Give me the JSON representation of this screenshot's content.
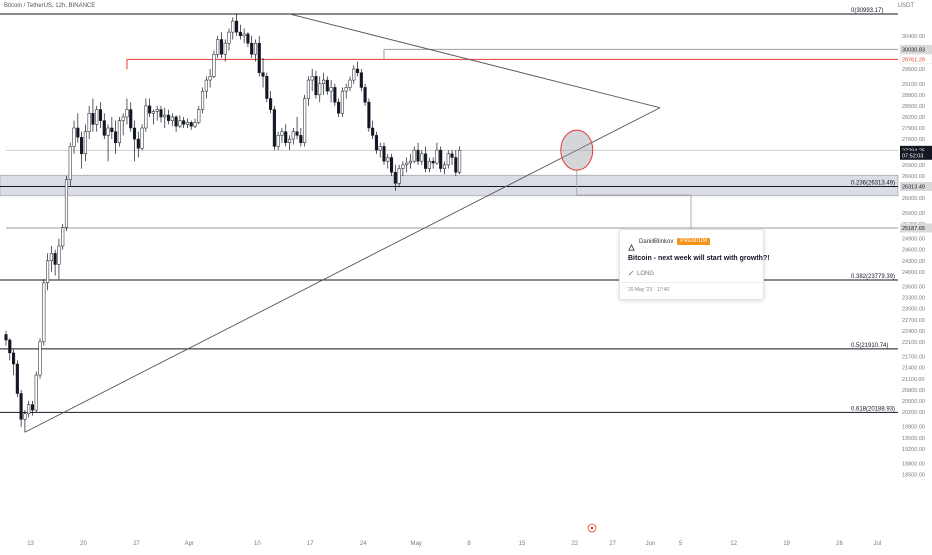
{
  "header": {
    "title": "Bitcoin / TetherUS, 12h, BINANCE",
    "currency": "USDT"
  },
  "price_scale": {
    "ticks": [
      "30400.00",
      "30100.00",
      "29800.00",
      "29500.00",
      "29100.00",
      "28800.00",
      "28500.00",
      "28200.00",
      "27900.00",
      "27600.00",
      "26900.00",
      "26600.00",
      "26300.00",
      "26000.00",
      "25600.00",
      "25300.00",
      "24900.00",
      "24600.00",
      "24300.00",
      "24000.00",
      "23600.00",
      "23300.00",
      "23000.00",
      "22700.00",
      "22400.00",
      "22100.00",
      "21700.00",
      "21400.00",
      "21100.00",
      "20800.00",
      "20500.00",
      "20200.00",
      "19800.00",
      "19500.00",
      "19200.00",
      "18800.00",
      "18500.00"
    ],
    "tags": [
      {
        "label": "30030.83",
        "value": 30030.83,
        "bg": "#d9d9d9",
        "color": "#131722"
      },
      {
        "label": "29761.29",
        "value": 29761.29,
        "bg": "#ffffff",
        "color": "#e53935"
      },
      {
        "label": "27294.25",
        "value": 27294.25,
        "bg": "#131722",
        "color": "#ffffff"
      },
      {
        "label": "07:52:03",
        "value": 27160,
        "bg": "#131722",
        "color": "#ffffff"
      },
      {
        "label": "26313.49",
        "value": 26313.49,
        "bg": "#d9d9d9",
        "color": "#131722"
      },
      {
        "label": "25187.65",
        "value": 25187.65,
        "bg": "#d9d9d9",
        "color": "#131722"
      }
    ]
  },
  "time_scale": {
    "ticks": [
      {
        "label": "13",
        "bar": 6.5
      },
      {
        "label": "20",
        "bar": 20.5
      },
      {
        "label": "27",
        "bar": 34.5
      },
      {
        "label": "Apr",
        "bar": 48.5
      },
      {
        "label": "10",
        "bar": 66.5
      },
      {
        "label": "17",
        "bar": 80.5
      },
      {
        "label": "24",
        "bar": 94.5
      },
      {
        "label": "May",
        "bar": 108.5
      },
      {
        "label": "8",
        "bar": 122.5
      },
      {
        "label": "15",
        "bar": 136.5
      },
      {
        "label": "22",
        "bar": 150.5
      },
      {
        "label": "27",
        "bar": 160.5
      },
      {
        "label": "Jun",
        "bar": 170.5
      },
      {
        "label": "5",
        "bar": 178.5
      },
      {
        "label": "12",
        "bar": 192.5
      },
      {
        "label": "19",
        "bar": 206.5
      },
      {
        "label": "26",
        "bar": 220.5
      },
      {
        "label": "Jul",
        "bar": 230.5
      }
    ]
  },
  "fib_levels": [
    {
      "label": "0(30993.17)",
      "value": 30993.17
    },
    {
      "label": "0.236(26313.49)",
      "value": 26313.49
    },
    {
      "label": "0.382(23779.39)",
      "value": 23779.39
    },
    {
      "label": "0.5(21910.74)",
      "value": 21910.74
    },
    {
      "label": "0.618(20188.93)",
      "value": 20188.93
    }
  ],
  "horizontal_lines": [
    {
      "value": 30030.83,
      "color": "#9e9e9e",
      "start_bar": 100
    },
    {
      "value": 29761.29,
      "color": "#e53935",
      "start_bar": 32
    },
    {
      "value": 27294.25,
      "color": "#cccccc",
      "start_bar": 0
    },
    {
      "value": 25187.65,
      "color": "#9e9e9e",
      "start_bar": 0
    }
  ],
  "support_zone": {
    "top": 26620,
    "bottom": 26060
  },
  "triangle": {
    "upper": {
      "start_bar": 75,
      "start_value": 30993.17,
      "end_bar": 173,
      "end_value": 28450
    },
    "lower": {
      "start_bar": 5,
      "start_value": 19650,
      "end_bar": 173,
      "end_value": 28450
    }
  },
  "highlight_circle": {
    "bar": 151,
    "value": 27300
  },
  "chart_data": {
    "type": "candlestick",
    "symbol": "BTCUSDT",
    "interval": "12h",
    "y_range": [
      18400,
      31100
    ],
    "ohlc": [
      [
        22300,
        22400,
        22000,
        22150
      ],
      [
        22150,
        22200,
        21600,
        21800
      ],
      [
        21800,
        21900,
        21200,
        21500
      ],
      [
        21500,
        21600,
        20600,
        20700
      ],
      [
        20700,
        20800,
        19800,
        20000
      ],
      [
        20000,
        20250,
        19650,
        20150
      ],
      [
        20150,
        20500,
        20050,
        20400
      ],
      [
        20400,
        20500,
        20100,
        20250
      ],
      [
        20250,
        21300,
        20200,
        21200
      ],
      [
        21200,
        22200,
        21100,
        22100
      ],
      [
        22100,
        23800,
        22000,
        23700
      ],
      [
        23700,
        24500,
        23500,
        24300
      ],
      [
        24300,
        24700,
        24000,
        24500
      ],
      [
        24500,
        24600,
        23900,
        24200
      ],
      [
        24200,
        24900,
        23800,
        24700
      ],
      [
        24700,
        25300,
        24600,
        25200
      ],
      [
        25200,
        26600,
        25100,
        26500
      ],
      [
        26500,
        27500,
        26300,
        27400
      ],
      [
        27400,
        28100,
        27200,
        27900
      ],
      [
        27900,
        28300,
        27500,
        27650
      ],
      [
        27650,
        27800,
        26800,
        27200
      ],
      [
        27200,
        28000,
        27000,
        27800
      ],
      [
        27800,
        28500,
        27600,
        28300
      ],
      [
        28300,
        28700,
        27800,
        28000
      ],
      [
        28000,
        28500,
        27800,
        28400
      ],
      [
        28400,
        28600,
        27900,
        28100
      ],
      [
        28100,
        28300,
        27600,
        27700
      ],
      [
        27700,
        28000,
        27000,
        27900
      ],
      [
        27900,
        28200,
        27600,
        27800
      ],
      [
        27800,
        28100,
        27200,
        27500
      ],
      [
        27500,
        28200,
        27400,
        28100
      ],
      [
        28100,
        28300,
        27700,
        28200
      ],
      [
        28200,
        28700,
        28000,
        28400
      ],
      [
        28400,
        28600,
        27800,
        27900
      ],
      [
        27900,
        28100,
        27000,
        27600
      ],
      [
        27600,
        27800,
        27100,
        27350
      ],
      [
        27350,
        28000,
        27300,
        27900
      ],
      [
        27900,
        28700,
        27800,
        28500
      ],
      [
        28500,
        28700,
        28200,
        28300
      ],
      [
        28300,
        28400,
        28000,
        28350
      ],
      [
        28350,
        28500,
        28100,
        28400
      ],
      [
        28400,
        28500,
        28050,
        28200
      ],
      [
        28200,
        28450,
        27900,
        28250
      ],
      [
        28250,
        28400,
        28000,
        28100
      ],
      [
        28100,
        28300,
        27950,
        28200
      ],
      [
        28200,
        28250,
        27800,
        27950
      ],
      [
        27950,
        28250,
        27900,
        28100
      ],
      [
        28100,
        28200,
        27900,
        28000
      ],
      [
        28000,
        28150,
        27900,
        28050
      ],
      [
        28050,
        28100,
        27850,
        27950
      ],
      [
        27950,
        28150,
        27900,
        28050
      ],
      [
        28050,
        28500,
        28000,
        28400
      ],
      [
        28400,
        29000,
        28300,
        28900
      ],
      [
        28900,
        29300,
        28700,
        29200
      ],
      [
        29200,
        29500,
        29000,
        29300
      ],
      [
        29300,
        30000,
        29250,
        29900
      ],
      [
        29900,
        30400,
        29800,
        30300
      ],
      [
        30300,
        30500,
        29800,
        29900
      ],
      [
        29900,
        30300,
        29700,
        30200
      ],
      [
        30200,
        30600,
        30000,
        30500
      ],
      [
        30500,
        30900,
        30300,
        30800
      ],
      [
        30800,
        31000,
        30400,
        30500
      ],
      [
        30500,
        30700,
        30300,
        30400
      ],
      [
        30400,
        30600,
        30200,
        30450
      ],
      [
        30450,
        30500,
        30100,
        30200
      ],
      [
        30200,
        30400,
        29800,
        29900
      ],
      [
        29900,
        30300,
        29700,
        30200
      ],
      [
        30200,
        30400,
        29300,
        29400
      ],
      [
        29400,
        29800,
        29000,
        29300
      ],
      [
        29300,
        29400,
        28600,
        28700
      ],
      [
        28700,
        28900,
        28300,
        28400
      ],
      [
        28400,
        28500,
        27300,
        27400
      ],
      [
        27400,
        27800,
        27300,
        27700
      ],
      [
        27700,
        27900,
        27500,
        27800
      ],
      [
        27800,
        28000,
        27400,
        27500
      ],
      [
        27500,
        27700,
        27300,
        27600
      ],
      [
        27600,
        27900,
        27450,
        27800
      ],
      [
        27800,
        28200,
        27600,
        27700
      ],
      [
        27700,
        27900,
        27400,
        27500
      ],
      [
        27500,
        28800,
        27400,
        28700
      ],
      [
        28700,
        29300,
        28500,
        29200
      ],
      [
        29200,
        29500,
        28900,
        29300
      ],
      [
        29300,
        29450,
        28700,
        28800
      ],
      [
        28800,
        29300,
        28600,
        29100
      ],
      [
        29100,
        29400,
        28800,
        29200
      ],
      [
        29200,
        29300,
        28800,
        28900
      ],
      [
        28900,
        29200,
        28600,
        29000
      ],
      [
        29000,
        29100,
        28500,
        28600
      ],
      [
        28600,
        28700,
        28200,
        28300
      ],
      [
        28300,
        29000,
        28200,
        28900
      ],
      [
        28900,
        29100,
        28700,
        29000
      ],
      [
        29000,
        29300,
        28900,
        29200
      ],
      [
        29200,
        29600,
        29100,
        29500
      ],
      [
        29500,
        29700,
        29300,
        29400
      ],
      [
        29400,
        29500,
        28900,
        29000
      ],
      [
        29000,
        29100,
        28500,
        28600
      ],
      [
        28600,
        28700,
        27800,
        27900
      ],
      [
        27900,
        28100,
        27600,
        27700
      ],
      [
        27700,
        27800,
        27200,
        27300
      ],
      [
        27300,
        27500,
        27100,
        27400
      ],
      [
        27400,
        27500,
        26900,
        27000
      ],
      [
        27000,
        27200,
        26800,
        27100
      ],
      [
        27100,
        27200,
        26600,
        26700
      ],
      [
        26700,
        26900,
        26200,
        26400
      ],
      [
        26400,
        26900,
        26300,
        26800
      ],
      [
        26800,
        27000,
        26600,
        26900
      ],
      [
        26900,
        27100,
        26700,
        26950
      ],
      [
        26950,
        27200,
        26800,
        27000
      ],
      [
        27000,
        27400,
        26950,
        27300
      ],
      [
        27300,
        27500,
        26900,
        27000
      ],
      [
        27000,
        27300,
        26900,
        27200
      ],
      [
        27200,
        27400,
        26700,
        26800
      ],
      [
        26800,
        27100,
        26700,
        27000
      ],
      [
        27000,
        27100,
        26800,
        26950
      ],
      [
        26950,
        27500,
        26900,
        27300
      ],
      [
        27300,
        27400,
        26700,
        26800
      ],
      [
        26800,
        27000,
        26650,
        26900
      ],
      [
        26900,
        27300,
        26800,
        27200
      ],
      [
        27200,
        27300,
        26900,
        27100
      ],
      [
        27100,
        27300,
        26600,
        26700
      ],
      [
        26700,
        27400,
        26650,
        27294.25
      ]
    ]
  },
  "idea": {
    "author": "DaniilBlinkov",
    "badge": "PREMIUM",
    "title": "Bitcoin - next week will start with growth?!",
    "direction_icon": "pencil-icon",
    "direction": "LONG",
    "date": "20 May '23 · 17:40"
  },
  "colors": {
    "fib": "#131722",
    "red_level": "#e53935",
    "zone_fill": "#d1d4dc",
    "candle_up_fill": "#ffffff",
    "candle_down_fill": "#131722",
    "circle_stroke": "#e53935",
    "badge": "#f7931a",
    "scale_text": "#787b86",
    "trend": "#555555"
  }
}
